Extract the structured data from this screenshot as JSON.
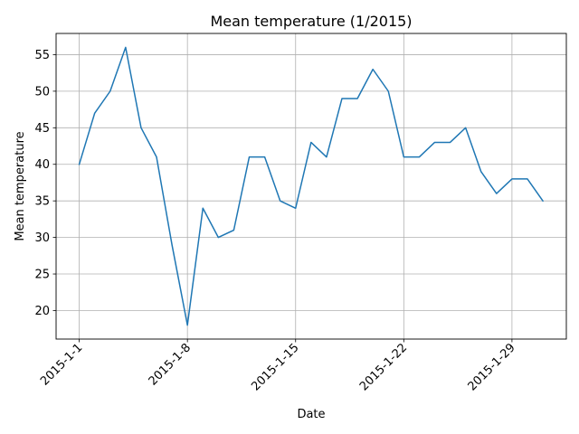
{
  "chart_data": {
    "type": "line",
    "title": "Mean temperature (1/2015)",
    "xlabel": "Date",
    "ylabel": "Mean temperature",
    "x": [
      "2015-1-1",
      "2015-1-2",
      "2015-1-3",
      "2015-1-4",
      "2015-1-5",
      "2015-1-6",
      "2015-1-7",
      "2015-1-8",
      "2015-1-9",
      "2015-1-10",
      "2015-1-11",
      "2015-1-12",
      "2015-1-13",
      "2015-1-14",
      "2015-1-15",
      "2015-1-16",
      "2015-1-17",
      "2015-1-18",
      "2015-1-19",
      "2015-1-20",
      "2015-1-21",
      "2015-1-22",
      "2015-1-23",
      "2015-1-24",
      "2015-1-25",
      "2015-1-26",
      "2015-1-27",
      "2015-1-28",
      "2015-1-29",
      "2015-1-30",
      "2015-1-31"
    ],
    "series": [
      {
        "values": [
          40,
          47,
          50,
          56,
          45,
          41,
          29,
          18,
          34,
          30,
          31,
          41,
          41,
          35,
          34,
          43,
          41,
          49,
          49,
          53,
          50,
          41,
          41,
          43,
          43,
          45,
          39,
          36,
          38,
          38,
          35
        ],
        "color": "#1f77b4"
      }
    ],
    "x_ticks": [
      "2015-1-1",
      "2015-1-8",
      "2015-1-15",
      "2015-1-22",
      "2015-1-29"
    ],
    "y_ticks": [
      "20",
      "25",
      "30",
      "35",
      "40",
      "45",
      "50",
      "55"
    ],
    "ylim": [
      16.1,
      57.9
    ],
    "grid": true
  }
}
